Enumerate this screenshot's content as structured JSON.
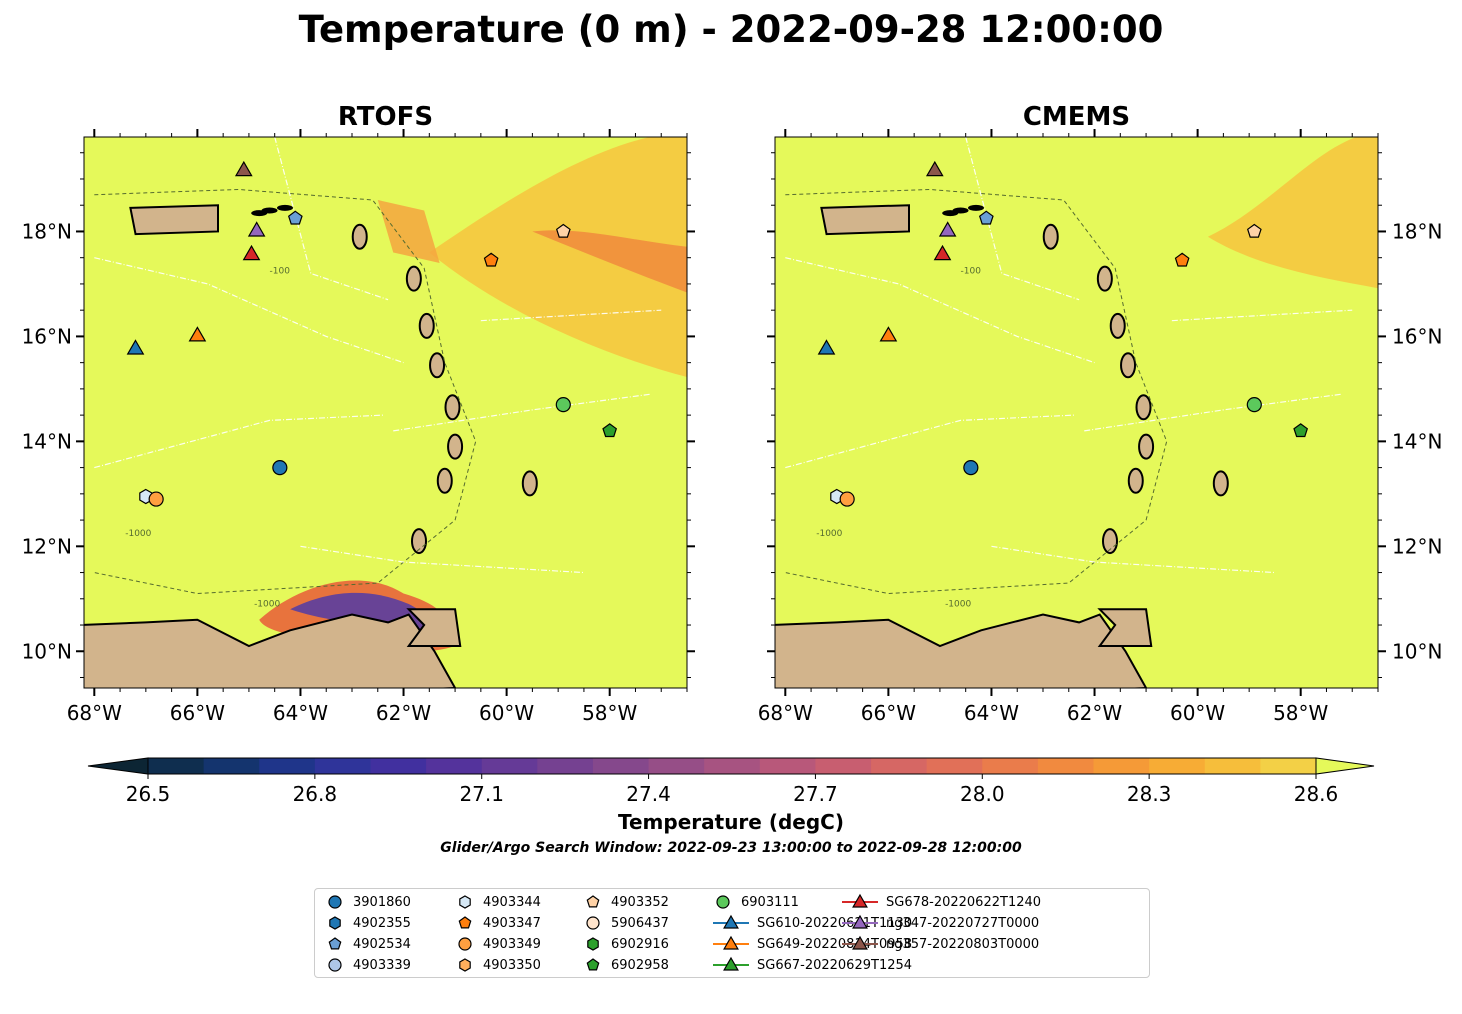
{
  "title": "Temperature (0 m) - 2022-09-28 12:00:00",
  "panels": [
    {
      "title": "RTOFS"
    },
    {
      "title": "CMEMS"
    }
  ],
  "axes": {
    "lon_ticks": [
      "68°W",
      "66°W",
      "64°W",
      "62°W",
      "60°W",
      "58°W"
    ],
    "lat_ticks": [
      "18°N",
      "16°N",
      "14°N",
      "12°N",
      "10°N"
    ]
  },
  "colorbar": {
    "label": "Temperature (degC)",
    "ticks": [
      "26.5",
      "26.8",
      "27.1",
      "27.4",
      "27.7",
      "28.0",
      "28.3",
      "28.6"
    ],
    "range": [
      26.5,
      28.6
    ],
    "extend": "both",
    "colormap": "thermal"
  },
  "search_window": "Glider/Argo Search Window: 2022-09-23 13:00:00 to 2022-09-28 12:00:00",
  "contour_labels": [
    "-100",
    "-1000"
  ],
  "chart_data": [
    {
      "type": "heatmap",
      "title": "RTOFS",
      "variable": "Temperature (0 m)",
      "units": "degC",
      "xlim": [
        "68.2°W",
        "56.5°W"
      ],
      "ylim": [
        "9.3°N",
        "19.8°N"
      ],
      "background_value": "≥28.6",
      "features": [
        "cool patch 26.5–27.5 near Gulf of Paria / Trinidad",
        "28.0–28.5 band east of Lesser Antilles near 18°N"
      ]
    },
    {
      "type": "heatmap",
      "title": "CMEMS",
      "variable": "Temperature (0 m)",
      "units": "degC",
      "xlim": [
        "68.2°W",
        "56.5°W"
      ],
      "ylim": [
        "9.3°N",
        "19.8°N"
      ],
      "background_value": "≥28.6",
      "features": [
        "28.3–28.5 region in northeast corner"
      ]
    }
  ],
  "platforms": [
    {
      "id": "3901860",
      "marker": "circle",
      "color": "#1f77b4",
      "lon": -64.4,
      "lat": 13.5
    },
    {
      "id": "4902355",
      "marker": "hexagon",
      "color": "#1f77b4"
    },
    {
      "id": "4902534",
      "marker": "pentagon",
      "color": "#6a9fd4",
      "lon": -64.1,
      "lat": 18.25
    },
    {
      "id": "4903339",
      "marker": "circle",
      "color": "#aec7e8"
    },
    {
      "id": "4903344",
      "marker": "hexagon",
      "color": "#d6e8f5",
      "lon": -67.0,
      "lat": 12.95
    },
    {
      "id": "4903347",
      "marker": "pentagon",
      "color": "#ff7f0e",
      "lon": -60.3,
      "lat": 17.45
    },
    {
      "id": "4903349",
      "marker": "circle",
      "color": "#ff9f40",
      "lon": -66.8,
      "lat": 12.9
    },
    {
      "id": "4903350",
      "marker": "hexagon",
      "color": "#ffae5c"
    },
    {
      "id": "4903352",
      "marker": "pentagon",
      "color": "#ffd2a6",
      "lon": -58.9,
      "lat": 18.0
    },
    {
      "id": "5906437",
      "marker": "circle",
      "color": "#ffe4cc"
    },
    {
      "id": "6902916",
      "marker": "hexagon",
      "color": "#2ca02c"
    },
    {
      "id": "6902958",
      "marker": "pentagon",
      "color": "#2ca02c",
      "lon": -58.0,
      "lat": 14.2
    },
    {
      "id": "6903111",
      "marker": "circle",
      "color": "#5cc95c",
      "lon": -58.9,
      "lat": 14.7
    },
    {
      "id": "SG610-20220621T1130",
      "marker": "triangle",
      "color": "#1f77b4",
      "line": true,
      "lon": -67.2,
      "lat": 15.75
    },
    {
      "id": "SG649-20220814T0958",
      "marker": "triangle",
      "color": "#ff7f0e",
      "line": true,
      "lon": -66.0,
      "lat": 16.0
    },
    {
      "id": "SG667-20220629T1254",
      "marker": "triangle",
      "color": "#2ca02c",
      "line": true
    },
    {
      "id": "SG678-20220622T1240",
      "marker": "triangle",
      "color": "#d62728",
      "line": true,
      "lon": -64.95,
      "lat": 17.55
    },
    {
      "id": "ng347-20220727T0000",
      "marker": "triangle",
      "color": "#9467bd",
      "line": true,
      "lon": -64.85,
      "lat": 18.0
    },
    {
      "id": "ng357-20220803T0000",
      "marker": "triangle",
      "color": "#8c564b",
      "line": true,
      "lon": -65.1,
      "lat": 19.15
    }
  ]
}
